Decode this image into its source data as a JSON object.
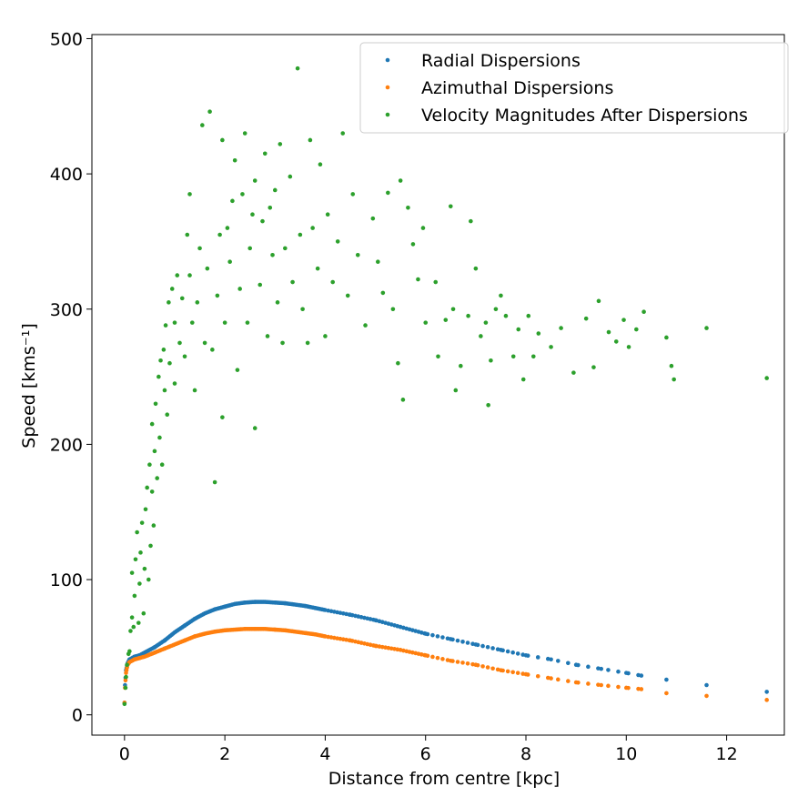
{
  "chart_data": {
    "type": "scatter",
    "title": "",
    "xlabel": "Distance from centre [kpc]",
    "ylabel": "Speed [kms⁻¹]",
    "xlim": [
      -0.65,
      13.15
    ],
    "ylim": [
      -15,
      503
    ],
    "xticks": [
      0,
      2,
      4,
      6,
      8,
      10,
      12
    ],
    "yticks": [
      0,
      100,
      200,
      300,
      400,
      500
    ],
    "grid": false,
    "legend_position": "top-right",
    "series": [
      {
        "name": "Radial Dispersions",
        "color": "#1f77b4",
        "curve": [
          [
            0.0,
            9
          ],
          [
            0.01,
            22
          ],
          [
            0.03,
            33
          ],
          [
            0.06,
            38
          ],
          [
            0.1,
            41
          ],
          [
            0.2,
            43
          ],
          [
            0.3,
            44
          ],
          [
            0.4,
            46
          ],
          [
            0.6,
            50
          ],
          [
            0.8,
            55
          ],
          [
            1.0,
            61
          ],
          [
            1.2,
            66
          ],
          [
            1.4,
            71
          ],
          [
            1.6,
            75
          ],
          [
            1.8,
            78
          ],
          [
            2.0,
            80
          ],
          [
            2.2,
            82
          ],
          [
            2.4,
            83
          ],
          [
            2.6,
            83.5
          ],
          [
            2.8,
            83.5
          ],
          [
            3.0,
            83
          ],
          [
            3.2,
            82.5
          ],
          [
            3.4,
            81.5
          ],
          [
            3.6,
            80.5
          ],
          [
            3.8,
            79
          ],
          [
            4.0,
            77.5
          ],
          [
            4.5,
            74
          ],
          [
            5.0,
            70
          ],
          [
            5.5,
            65
          ],
          [
            6.0,
            60
          ],
          [
            6.5,
            56
          ],
          [
            7.0,
            52
          ],
          [
            7.5,
            48
          ],
          [
            8.0,
            44
          ],
          [
            8.5,
            41
          ],
          [
            9.0,
            37
          ],
          [
            9.5,
            34
          ],
          [
            10.0,
            31
          ],
          [
            10.3,
            29
          ],
          [
            10.8,
            26
          ],
          [
            11.6,
            22
          ],
          [
            12.8,
            17
          ]
        ]
      },
      {
        "name": "Azimuthal Dispersions",
        "color": "#ff7f0e",
        "curve": [
          [
            0.0,
            9
          ],
          [
            0.01,
            20
          ],
          [
            0.03,
            31
          ],
          [
            0.06,
            37
          ],
          [
            0.1,
            39
          ],
          [
            0.2,
            41
          ],
          [
            0.3,
            42
          ],
          [
            0.4,
            43
          ],
          [
            0.6,
            46
          ],
          [
            0.8,
            49
          ],
          [
            1.0,
            52
          ],
          [
            1.2,
            55
          ],
          [
            1.4,
            58
          ],
          [
            1.6,
            60
          ],
          [
            1.8,
            61.5
          ],
          [
            2.0,
            62.5
          ],
          [
            2.2,
            63
          ],
          [
            2.4,
            63.5
          ],
          [
            2.6,
            63.5
          ],
          [
            2.8,
            63.5
          ],
          [
            3.0,
            63
          ],
          [
            3.2,
            62.5
          ],
          [
            3.4,
            61.5
          ],
          [
            3.6,
            60.5
          ],
          [
            3.8,
            59.5
          ],
          [
            4.0,
            58
          ],
          [
            4.5,
            55
          ],
          [
            5.0,
            51
          ],
          [
            5.5,
            48
          ],
          [
            6.0,
            44
          ],
          [
            6.5,
            40
          ],
          [
            7.0,
            37
          ],
          [
            7.5,
            33
          ],
          [
            8.0,
            30
          ],
          [
            8.5,
            27
          ],
          [
            9.0,
            24
          ],
          [
            9.5,
            22
          ],
          [
            10.0,
            20
          ],
          [
            10.3,
            19
          ],
          [
            10.8,
            16
          ],
          [
            11.6,
            14
          ],
          [
            12.8,
            11
          ]
        ]
      },
      {
        "name": "Velocity Magnitudes After Dispersions",
        "color": "#2ca02c",
        "points": [
          [
            0.0,
            8
          ],
          [
            0.02,
            20
          ],
          [
            0.03,
            28
          ],
          [
            0.05,
            37
          ],
          [
            0.08,
            45
          ],
          [
            0.1,
            47
          ],
          [
            0.12,
            62
          ],
          [
            0.15,
            72
          ],
          [
            0.15,
            105
          ],
          [
            0.18,
            65
          ],
          [
            0.2,
            88
          ],
          [
            0.22,
            115
          ],
          [
            0.25,
            135
          ],
          [
            0.28,
            68
          ],
          [
            0.3,
            97
          ],
          [
            0.32,
            120
          ],
          [
            0.35,
            142
          ],
          [
            0.38,
            75
          ],
          [
            0.4,
            108
          ],
          [
            0.42,
            152
          ],
          [
            0.45,
            168
          ],
          [
            0.48,
            100
          ],
          [
            0.5,
            185
          ],
          [
            0.52,
            125
          ],
          [
            0.55,
            165
          ],
          [
            0.55,
            215
          ],
          [
            0.58,
            140
          ],
          [
            0.6,
            195
          ],
          [
            0.62,
            230
          ],
          [
            0.65,
            175
          ],
          [
            0.68,
            250
          ],
          [
            0.7,
            205
          ],
          [
            0.72,
            262
          ],
          [
            0.75,
            185
          ],
          [
            0.78,
            270
          ],
          [
            0.8,
            240
          ],
          [
            0.82,
            288
          ],
          [
            0.85,
            222
          ],
          [
            0.88,
            305
          ],
          [
            0.9,
            260
          ],
          [
            0.95,
            315
          ],
          [
            1.0,
            245
          ],
          [
            1.0,
            290
          ],
          [
            1.05,
            325
          ],
          [
            1.1,
            275
          ],
          [
            1.15,
            308
          ],
          [
            1.2,
            265
          ],
          [
            1.25,
            355
          ],
          [
            1.3,
            325
          ],
          [
            1.3,
            385
          ],
          [
            1.35,
            290
          ],
          [
            1.4,
            240
          ],
          [
            1.45,
            305
          ],
          [
            1.5,
            345
          ],
          [
            1.55,
            436
          ],
          [
            1.6,
            275
          ],
          [
            1.65,
            330
          ],
          [
            1.7,
            446
          ],
          [
            1.75,
            270
          ],
          [
            1.8,
            172
          ],
          [
            1.85,
            310
          ],
          [
            1.9,
            355
          ],
          [
            1.95,
            425
          ],
          [
            1.95,
            220
          ],
          [
            2.0,
            290
          ],
          [
            2.05,
            360
          ],
          [
            2.1,
            335
          ],
          [
            2.15,
            380
          ],
          [
            2.2,
            410
          ],
          [
            2.25,
            255
          ],
          [
            2.3,
            315
          ],
          [
            2.35,
            385
          ],
          [
            2.4,
            430
          ],
          [
            2.45,
            290
          ],
          [
            2.5,
            345
          ],
          [
            2.55,
            370
          ],
          [
            2.6,
            395
          ],
          [
            2.6,
            212
          ],
          [
            2.7,
            318
          ],
          [
            2.75,
            365
          ],
          [
            2.8,
            415
          ],
          [
            2.85,
            280
          ],
          [
            2.9,
            375
          ],
          [
            2.95,
            340
          ],
          [
            3.0,
            388
          ],
          [
            3.05,
            305
          ],
          [
            3.1,
            422
          ],
          [
            3.15,
            275
          ],
          [
            3.2,
            345
          ],
          [
            3.3,
            398
          ],
          [
            3.35,
            320
          ],
          [
            3.45,
            478
          ],
          [
            3.5,
            355
          ],
          [
            3.55,
            300
          ],
          [
            3.65,
            275
          ],
          [
            3.7,
            425
          ],
          [
            3.75,
            360
          ],
          [
            3.85,
            330
          ],
          [
            3.9,
            407
          ],
          [
            4.0,
            280
          ],
          [
            4.05,
            370
          ],
          [
            4.15,
            320
          ],
          [
            4.25,
            350
          ],
          [
            4.35,
            430
          ],
          [
            4.45,
            310
          ],
          [
            4.55,
            385
          ],
          [
            4.65,
            340
          ],
          [
            4.8,
            288
          ],
          [
            4.95,
            367
          ],
          [
            5.05,
            335
          ],
          [
            5.15,
            312
          ],
          [
            5.25,
            386
          ],
          [
            5.35,
            300
          ],
          [
            5.45,
            260
          ],
          [
            5.5,
            395
          ],
          [
            5.55,
            233
          ],
          [
            5.65,
            375
          ],
          [
            5.75,
            348
          ],
          [
            5.85,
            322
          ],
          [
            5.95,
            360
          ],
          [
            6.0,
            290
          ],
          [
            6.2,
            320
          ],
          [
            6.25,
            265
          ],
          [
            6.4,
            292
          ],
          [
            6.5,
            376
          ],
          [
            6.55,
            300
          ],
          [
            6.6,
            240
          ],
          [
            6.7,
            258
          ],
          [
            6.85,
            295
          ],
          [
            6.9,
            365
          ],
          [
            7.0,
            330
          ],
          [
            7.1,
            280
          ],
          [
            7.2,
            290
          ],
          [
            7.25,
            229
          ],
          [
            7.3,
            262
          ],
          [
            7.4,
            300
          ],
          [
            7.5,
            310
          ],
          [
            7.6,
            295
          ],
          [
            7.75,
            265
          ],
          [
            7.85,
            285
          ],
          [
            7.95,
            248
          ],
          [
            8.05,
            295
          ],
          [
            8.15,
            265
          ],
          [
            8.25,
            282
          ],
          [
            8.5,
            272
          ],
          [
            8.7,
            286
          ],
          [
            8.95,
            253
          ],
          [
            9.2,
            293
          ],
          [
            9.35,
            257
          ],
          [
            9.45,
            306
          ],
          [
            9.65,
            283
          ],
          [
            9.8,
            276
          ],
          [
            9.95,
            292
          ],
          [
            10.05,
            272
          ],
          [
            10.2,
            285
          ],
          [
            10.35,
            298
          ],
          [
            10.8,
            279
          ],
          [
            10.9,
            258
          ],
          [
            10.95,
            248
          ],
          [
            11.6,
            286
          ],
          [
            12.8,
            249
          ]
        ]
      }
    ]
  }
}
